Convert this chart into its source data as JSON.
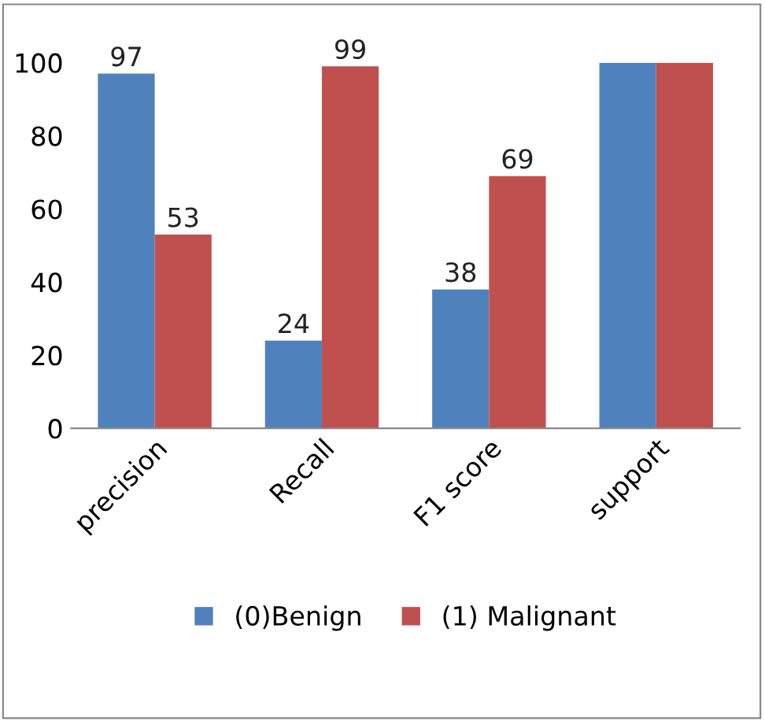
{
  "chart_data": {
    "type": "bar",
    "categories": [
      "precision",
      "Recall",
      "F1 score",
      "support"
    ],
    "series": [
      {
        "name": "(0)Benign",
        "color": "#4f81bd",
        "values": [
          97,
          24,
          38,
          100
        ],
        "value_labels": [
          "97",
          "24",
          "38",
          null
        ]
      },
      {
        "name": "(1) Malignant",
        "color": "#c0504d",
        "values": [
          53,
          99,
          69,
          100
        ],
        "value_labels": [
          "53",
          "99",
          "69",
          null
        ]
      }
    ],
    "ylim": [
      0,
      100
    ],
    "yticks": [
      0,
      20,
      40,
      60,
      80,
      100
    ],
    "grid": false,
    "legend": "bottom"
  }
}
